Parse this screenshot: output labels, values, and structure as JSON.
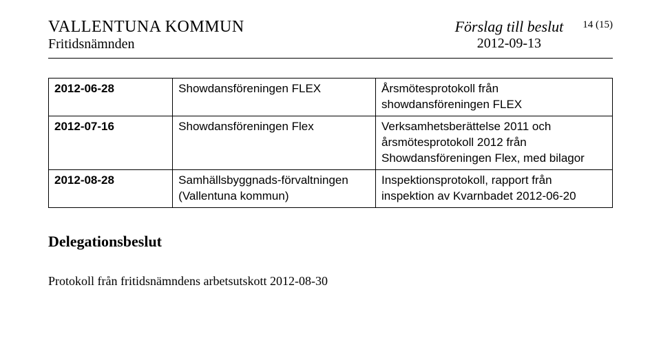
{
  "header": {
    "org": "VALLENTUNA KOMMUN",
    "committee": "Fritidsnämnden",
    "doc_title": "Förslag till beslut",
    "date": "2012-09-13",
    "page_num": "14 (15)"
  },
  "table": {
    "rows": [
      {
        "date": "2012-06-28",
        "who": "Showdansföreningen FLEX",
        "what": "Årsmötesprotokoll från showdansföreningen FLEX"
      },
      {
        "date": "2012-07-16",
        "who": "Showdansföreningen Flex",
        "what": "Verksamhetsberättelse 2011 och årsmötesprotokoll 2012 från Showdansföreningen Flex, med bilagor"
      },
      {
        "date": "2012-08-28",
        "who": "Samhällsbyggnads-förvaltningen (Vallentuna kommun)",
        "what": "Inspektionsprotokoll, rapport från inspektion av Kvarnbadet 2012-06-20"
      }
    ]
  },
  "section_heading": "Delegationsbeslut",
  "footer_text": "Protokoll från fritidsnämndens arbetsutskott 2012-08-30",
  "colors": {
    "text": "#000000",
    "background": "#ffffff",
    "rule": "#000000"
  }
}
